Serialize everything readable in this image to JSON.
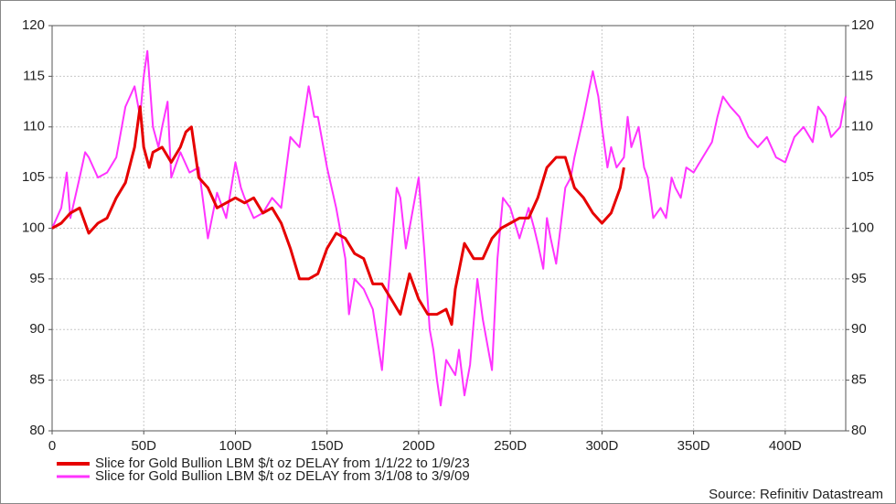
{
  "chart_data": {
    "type": "line",
    "source": "Source: Refinitiv Datastream",
    "xlim": [
      0,
      433
    ],
    "xticks": [
      0,
      {
        "value": 50,
        "label": "50D"
      },
      {
        "value": 100,
        "label": "100D"
      },
      {
        "value": 150,
        "label": "150D"
      },
      {
        "value": 200,
        "label": "200D"
      },
      {
        "value": 250,
        "label": "250D"
      },
      {
        "value": 300,
        "label": "300D"
      },
      {
        "value": 350,
        "label": "350D"
      },
      {
        "value": 400,
        "label": "400D"
      }
    ],
    "ylim": [
      80,
      120
    ],
    "yticks": [
      80,
      85,
      90,
      95,
      100,
      105,
      110,
      115,
      120
    ],
    "y2lim": [
      80,
      120
    ],
    "y2ticks": [
      80,
      85,
      90,
      95,
      100,
      105,
      110,
      115,
      120
    ],
    "grid": true,
    "series": [
      {
        "name": "Slice for Gold Bullion LBM $/t oz DELAY from 1/1/22 to 1/9/23",
        "color": "#e60000",
        "x": [
          0,
          5,
          10,
          15,
          20,
          25,
          30,
          35,
          40,
          45,
          48,
          50,
          53,
          55,
          60,
          65,
          70,
          73,
          76,
          80,
          85,
          90,
          95,
          100,
          105,
          110,
          115,
          120,
          125,
          130,
          135,
          140,
          145,
          150,
          155,
          160,
          165,
          170,
          175,
          180,
          185,
          190,
          195,
          200,
          205,
          210,
          215,
          218,
          220,
          225,
          230,
          235,
          240,
          245,
          250,
          255,
          260,
          265,
          270,
          275,
          280,
          285,
          290,
          295,
          300,
          305,
          310,
          312
        ],
        "values": [
          100,
          100.5,
          101.5,
          102,
          99.5,
          100.5,
          101,
          103,
          104.5,
          108,
          112,
          108,
          106,
          107.5,
          108,
          106.5,
          108,
          109.5,
          110,
          105,
          104,
          102,
          102.5,
          103,
          102.5,
          103,
          101.5,
          102,
          100.5,
          98,
          95,
          95,
          95.5,
          98,
          99.5,
          99,
          97.5,
          97,
          94.5,
          94.5,
          93,
          91.5,
          95.5,
          93,
          91.5,
          91.5,
          92,
          90.5,
          94,
          98.5,
          97,
          97,
          99,
          100,
          100.5,
          101,
          101,
          103,
          106,
          107,
          107,
          104,
          103,
          101.5,
          100.5,
          101.5,
          104,
          106
        ]
      },
      {
        "name": "Slice for Gold Bullion LBM $/t oz DELAY from 3/1/08 to 3/9/09",
        "color": "#ff33ff",
        "x": [
          0,
          5,
          8,
          10,
          15,
          18,
          20,
          25,
          30,
          35,
          40,
          45,
          48,
          50,
          52,
          55,
          58,
          60,
          63,
          65,
          70,
          75,
          80,
          85,
          90,
          95,
          100,
          103,
          105,
          110,
          115,
          120,
          125,
          130,
          135,
          140,
          143,
          145,
          150,
          155,
          160,
          162,
          165,
          170,
          175,
          180,
          183,
          185,
          188,
          190,
          193,
          196,
          200,
          203,
          206,
          208,
          210,
          212,
          215,
          220,
          222,
          225,
          228,
          232,
          235,
          238,
          240,
          243,
          246,
          250,
          255,
          260,
          263,
          265,
          268,
          270,
          272,
          275,
          280,
          283,
          285,
          290,
          295,
          298,
          300,
          303,
          305,
          308,
          312,
          314,
          316,
          320,
          323,
          325,
          328,
          332,
          335,
          338,
          340,
          343,
          346,
          350,
          355,
          360,
          363,
          366,
          370,
          375,
          380,
          385,
          390,
          395,
          400,
          405,
          410,
          415,
          418,
          422,
          425,
          430,
          433
        ],
        "values": [
          100,
          102,
          105.5,
          101,
          105,
          107.5,
          107,
          105,
          105.5,
          107,
          112,
          114,
          111,
          115,
          117.5,
          110,
          108,
          110,
          112.5,
          105,
          107.5,
          105.5,
          106,
          99,
          103.5,
          101,
          106.5,
          104,
          103,
          101,
          101.5,
          103,
          102,
          109,
          108,
          114,
          111,
          111,
          106,
          102,
          97,
          91.5,
          95,
          94,
          92,
          86,
          93,
          97.5,
          104,
          103,
          98,
          101,
          105,
          98,
          90,
          88,
          85,
          82.5,
          87,
          85.5,
          88,
          83.5,
          86.5,
          95,
          91,
          88,
          86,
          97,
          103,
          102,
          99,
          102,
          100,
          98.5,
          96,
          101,
          99,
          96.5,
          104,
          105,
          107,
          111,
          115.5,
          113,
          110,
          106,
          108,
          106,
          107,
          111,
          108,
          110,
          106,
          105,
          101,
          102,
          101,
          105,
          104,
          103,
          106,
          105.5,
          107,
          108.5,
          111,
          113,
          112,
          111,
          109,
          108,
          109,
          107,
          106.5,
          109,
          110,
          108.5,
          112,
          111,
          109,
          110,
          113
        ]
      }
    ]
  }
}
